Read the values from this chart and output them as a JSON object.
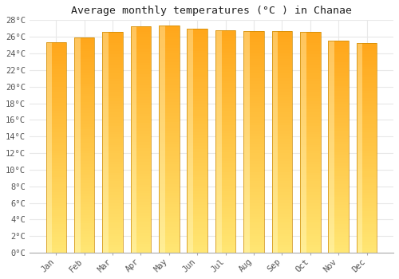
{
  "title": "Average monthly temperatures (°C ) in Chanae",
  "months": [
    "Jan",
    "Feb",
    "Mar",
    "Apr",
    "May",
    "Jun",
    "Jul",
    "Aug",
    "Sep",
    "Oct",
    "Nov",
    "Dec"
  ],
  "temperatures": [
    25.3,
    25.9,
    26.6,
    27.3,
    27.4,
    27.0,
    26.8,
    26.7,
    26.7,
    26.6,
    25.5,
    25.2
  ],
  "ylim": [
    0,
    28
  ],
  "yticks": [
    0,
    2,
    4,
    6,
    8,
    10,
    12,
    14,
    16,
    18,
    20,
    22,
    24,
    26,
    28
  ],
  "ytick_labels": [
    "0°C",
    "2°C",
    "4°C",
    "6°C",
    "8°C",
    "10°C",
    "12°C",
    "14°C",
    "16°C",
    "18°C",
    "20°C",
    "22°C",
    "24°C",
    "26°C",
    "28°C"
  ],
  "background_color": "#FFFFFF",
  "grid_color": "#E8E8E8",
  "title_fontsize": 9.5,
  "tick_fontsize": 7.5,
  "bar_color_left": "#FFD54F",
  "bar_color_center": "#FFA726",
  "bar_color_right": "#FF8F00",
  "bar_edge_color": "#CC8800",
  "bar_width": 0.72
}
